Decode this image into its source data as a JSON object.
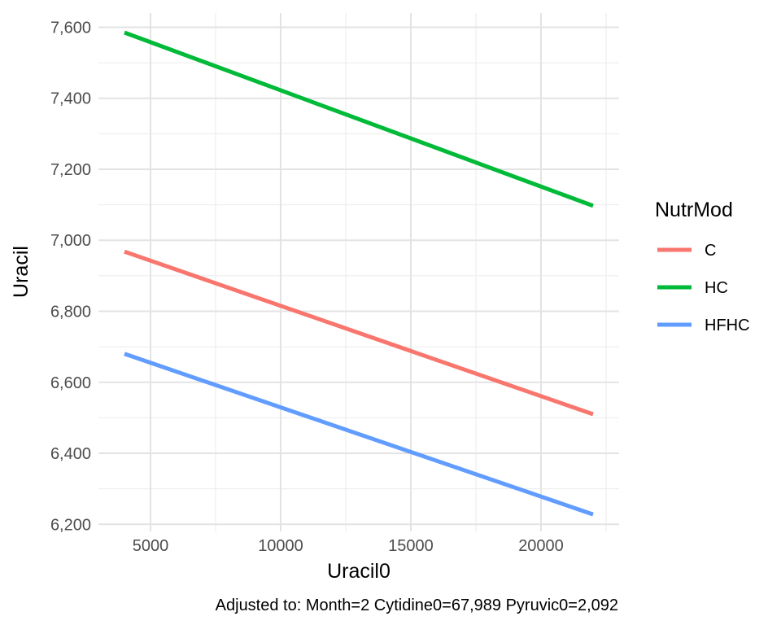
{
  "chart_data": {
    "type": "line",
    "xlabel": "Uracil0",
    "ylabel": "Uracil",
    "caption": "Adjusted to: Month=2 Cytidine0=67,989 Pyruvic0=2,092",
    "xlim": [
      3000,
      23000
    ],
    "ylim": [
      6180,
      7640
    ],
    "x_ticks": [
      5000,
      10000,
      15000,
      20000
    ],
    "x_tick_labels": [
      "5000",
      "10000",
      "15000",
      "20000"
    ],
    "y_ticks": [
      6200,
      6400,
      6600,
      6800,
      7000,
      7200,
      7400,
      7600
    ],
    "y_tick_labels": [
      "6,200",
      "6,400",
      "6,600",
      "6,800",
      "7,000",
      "7,200",
      "7,400",
      "7,600"
    ],
    "grid": true,
    "legend": {
      "title": "NutrMod",
      "position": "right"
    },
    "series": [
      {
        "name": "C",
        "color": "#F8766D",
        "x": [
          4000,
          22000
        ],
        "y": [
          6968,
          6510
        ]
      },
      {
        "name": "HC",
        "color": "#00BA38",
        "x": [
          4000,
          22000
        ],
        "y": [
          7585,
          7097
        ]
      },
      {
        "name": "HFHC",
        "color": "#619CFF",
        "x": [
          4000,
          22000
        ],
        "y": [
          6680,
          6228
        ]
      }
    ]
  }
}
